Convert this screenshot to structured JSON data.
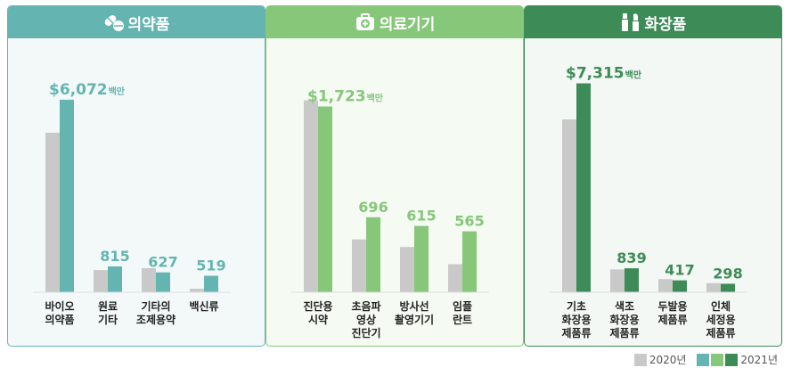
{
  "legend": {
    "y2020": "2020년",
    "y2021": "2021년"
  },
  "colors": {
    "grey2020": "#c9c9c9",
    "pharma": "#64b5b1",
    "medical": "#86c77a",
    "cosmetic": "#3d8b57"
  },
  "panels": [
    {
      "title": "의약품",
      "icon": "pill-icon"
    },
    {
      "title": "의료기기",
      "icon": "medical-kit-icon"
    },
    {
      "title": "화장품",
      "icon": "cosmetics-icon"
    }
  ],
  "chart_data": [
    {
      "type": "bar",
      "title": "의약품",
      "categories": [
        [
          "바이오",
          "의약품"
        ],
        [
          "원료",
          "기타"
        ],
        [
          "기타의",
          "조제용약"
        ],
        [
          "백신류"
        ]
      ],
      "series": [
        {
          "name": "2020년",
          "values": [
            5030,
            700,
            760,
            110
          ]
        },
        {
          "name": "2021년",
          "values": [
            6072,
            815,
            627,
            519
          ]
        }
      ],
      "labels": [
        "$6,072",
        "815",
        "627",
        "519"
      ],
      "label_unit": [
        "백만",
        "",
        "",
        ""
      ],
      "ylim": [
        0,
        6800
      ]
    },
    {
      "type": "bar",
      "title": "의료기기",
      "categories": [
        [
          "진단용",
          "시약"
        ],
        [
          "초음파",
          "영상",
          "진단기"
        ],
        [
          "방사선",
          "촬영기기"
        ],
        [
          "임플",
          "란트"
        ]
      ],
      "series": [
        {
          "name": "2020년",
          "values": [
            1780,
            490,
            420,
            260
          ]
        },
        {
          "name": "2021년",
          "values": [
            1723,
            696,
            615,
            565
          ]
        }
      ],
      "labels": [
        "$1,723",
        "696",
        "615",
        "565"
      ],
      "label_unit": [
        "백만",
        "",
        "",
        ""
      ],
      "ylim": [
        0,
        2000
      ]
    },
    {
      "type": "bar",
      "title": "화장품",
      "categories": [
        [
          "기초",
          "화장용",
          "제품류"
        ],
        [
          "색조",
          "화장용",
          "제품류"
        ],
        [
          "두발용",
          "제품류"
        ],
        [
          "인체",
          "세정용",
          "제품류"
        ]
      ],
      "series": [
        {
          "name": "2020년",
          "values": [
            6050,
            800,
            460,
            320
          ]
        },
        {
          "name": "2021년",
          "values": [
            7315,
            839,
            417,
            298
          ]
        }
      ],
      "labels": [
        "$7,315",
        "839",
        "417",
        "298"
      ],
      "label_unit": [
        "백만",
        "",
        "",
        ""
      ],
      "ylim": [
        0,
        7550
      ]
    }
  ]
}
